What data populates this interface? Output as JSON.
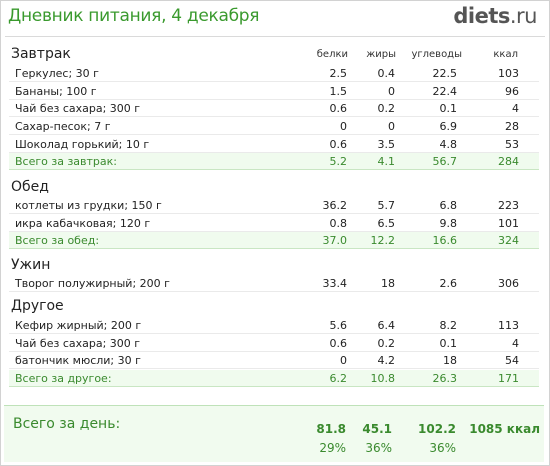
{
  "header": {
    "title": "Дневник питания, 4 декабря",
    "logo_main": "diets",
    "logo_suffix": ".ru"
  },
  "columns": {
    "protein": "белки",
    "fat": "жиры",
    "carbs": "углеводы",
    "kcal": "ккал"
  },
  "sections": [
    {
      "name": "Завтрак",
      "items": [
        {
          "name": "Геркулес; 30 г",
          "protein": "2.5",
          "fat": "0.4",
          "carbs": "22.5",
          "kcal": "103"
        },
        {
          "name": "Бананы; 100 г",
          "protein": "1.5",
          "fat": "0",
          "carbs": "22.4",
          "kcal": "96"
        },
        {
          "name": "Чай без сахара; 300 г",
          "protein": "0.6",
          "fat": "0.2",
          "carbs": "0.1",
          "kcal": "4"
        },
        {
          "name": "Сахар-песок; 7 г",
          "protein": "0",
          "fat": "0",
          "carbs": "6.9",
          "kcal": "28"
        },
        {
          "name": "Шоколад горький; 10 г",
          "protein": "0.6",
          "fat": "3.5",
          "carbs": "4.8",
          "kcal": "53"
        }
      ],
      "total": {
        "name": "Всего за завтрак:",
        "protein": "5.2",
        "fat": "4.1",
        "carbs": "56.7",
        "kcal": "284"
      }
    },
    {
      "name": "Обед",
      "items": [
        {
          "name": "котлеты из грудки; 150 г",
          "protein": "36.2",
          "fat": "5.7",
          "carbs": "6.8",
          "kcal": "223"
        },
        {
          "name": "икра кабачковая; 120 г",
          "protein": "0.8",
          "fat": "6.5",
          "carbs": "9.8",
          "kcal": "101"
        }
      ],
      "total": {
        "name": "Всего за обед:",
        "protein": "37.0",
        "fat": "12.2",
        "carbs": "16.6",
        "kcal": "324"
      }
    },
    {
      "name": "Ужин",
      "items": [
        {
          "name": "Творог полужирный; 200 г",
          "protein": "33.4",
          "fat": "18",
          "carbs": "2.6",
          "kcal": "306"
        }
      ]
    },
    {
      "name": "Другое",
      "items": [
        {
          "name": "Кефир жирный; 200 г",
          "protein": "5.6",
          "fat": "6.4",
          "carbs": "8.2",
          "kcal": "113"
        },
        {
          "name": "Чай без сахара; 300 г",
          "protein": "0.6",
          "fat": "0.2",
          "carbs": "0.1",
          "kcal": "4"
        },
        {
          "name": "батончик мюсли; 30 г",
          "protein": "0",
          "fat": "4.2",
          "carbs": "18",
          "kcal": "54"
        }
      ],
      "total": {
        "name": "Всего за другое:",
        "protein": "6.2",
        "fat": "10.8",
        "carbs": "26.3",
        "kcal": "171"
      }
    }
  ],
  "day_total": {
    "label": "Всего за день:",
    "protein": "81.8",
    "fat": "45.1",
    "carbs": "102.2",
    "kcal": "1085 ккал",
    "protein_pct": "29%",
    "fat_pct": "36%",
    "carbs_pct": "36%"
  },
  "colors": {
    "accent_green": "#3a9a2e",
    "total_bg": "#f0fbee"
  }
}
